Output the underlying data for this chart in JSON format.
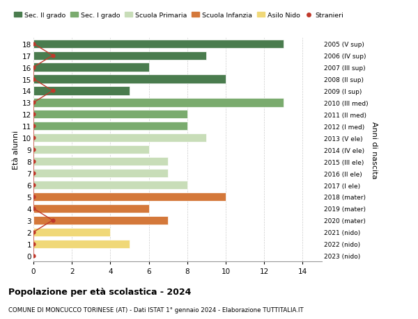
{
  "ages": [
    18,
    17,
    16,
    15,
    14,
    13,
    12,
    11,
    10,
    9,
    8,
    7,
    6,
    5,
    4,
    3,
    2,
    1,
    0
  ],
  "years": [
    "2005 (V sup)",
    "2006 (IV sup)",
    "2007 (III sup)",
    "2008 (II sup)",
    "2009 (I sup)",
    "2010 (III med)",
    "2011 (II med)",
    "2012 (I med)",
    "2013 (V ele)",
    "2014 (IV ele)",
    "2015 (III ele)",
    "2016 (II ele)",
    "2017 (I ele)",
    "2018 (mater)",
    "2019 (mater)",
    "2020 (mater)",
    "2021 (nido)",
    "2022 (nido)",
    "2023 (nido)"
  ],
  "bar_values": [
    13,
    9,
    6,
    10,
    5,
    13,
    8,
    8,
    9,
    6,
    7,
    7,
    8,
    10,
    6,
    7,
    4,
    5,
    0
  ],
  "bar_colors": [
    "#4a7c4e",
    "#4a7c4e",
    "#4a7c4e",
    "#4a7c4e",
    "#4a7c4e",
    "#7aab6e",
    "#7aab6e",
    "#7aab6e",
    "#c8ddb8",
    "#c8ddb8",
    "#c8ddb8",
    "#c8ddb8",
    "#c8ddb8",
    "#d4783a",
    "#d4783a",
    "#d4783a",
    "#f0d878",
    "#f0d878",
    "#f0d878"
  ],
  "stranieri_ages": [
    18,
    17,
    16,
    15,
    14,
    13,
    12,
    11,
    10,
    9,
    8,
    7,
    6,
    5,
    4,
    3,
    2,
    1,
    0
  ],
  "stranieri_x": [
    0,
    1,
    0,
    0,
    1,
    0,
    0,
    0,
    0,
    0,
    0,
    0,
    0,
    0,
    0,
    1,
    0,
    0,
    0
  ],
  "legend_labels": [
    "Sec. II grado",
    "Sec. I grado",
    "Scuola Primaria",
    "Scuola Infanzia",
    "Asilo Nido",
    "Stranieri"
  ],
  "legend_colors": [
    "#4a7c4e",
    "#7aab6e",
    "#c8ddb8",
    "#d4783a",
    "#f0d878",
    "#c0392b"
  ],
  "ylabel_left": "Età alunni",
  "ylabel_right": "Anni di nascita",
  "title": "Popolazione per età scolastica - 2024",
  "subtitle": "COMUNE DI MONCUCCO TORINESE (AT) - Dati ISTAT 1° gennaio 2024 - Elaborazione TUTTITALIA.IT",
  "xlim": [
    0,
    15
  ],
  "xticks": [
    0,
    2,
    4,
    6,
    8,
    10,
    12,
    14
  ],
  "background_color": "#ffffff",
  "grid_color": "#cccccc",
  "bar_height": 0.72,
  "stranieri_color": "#c0392b",
  "stranieri_linewidth": 1.0,
  "stranieri_markersize": 5
}
